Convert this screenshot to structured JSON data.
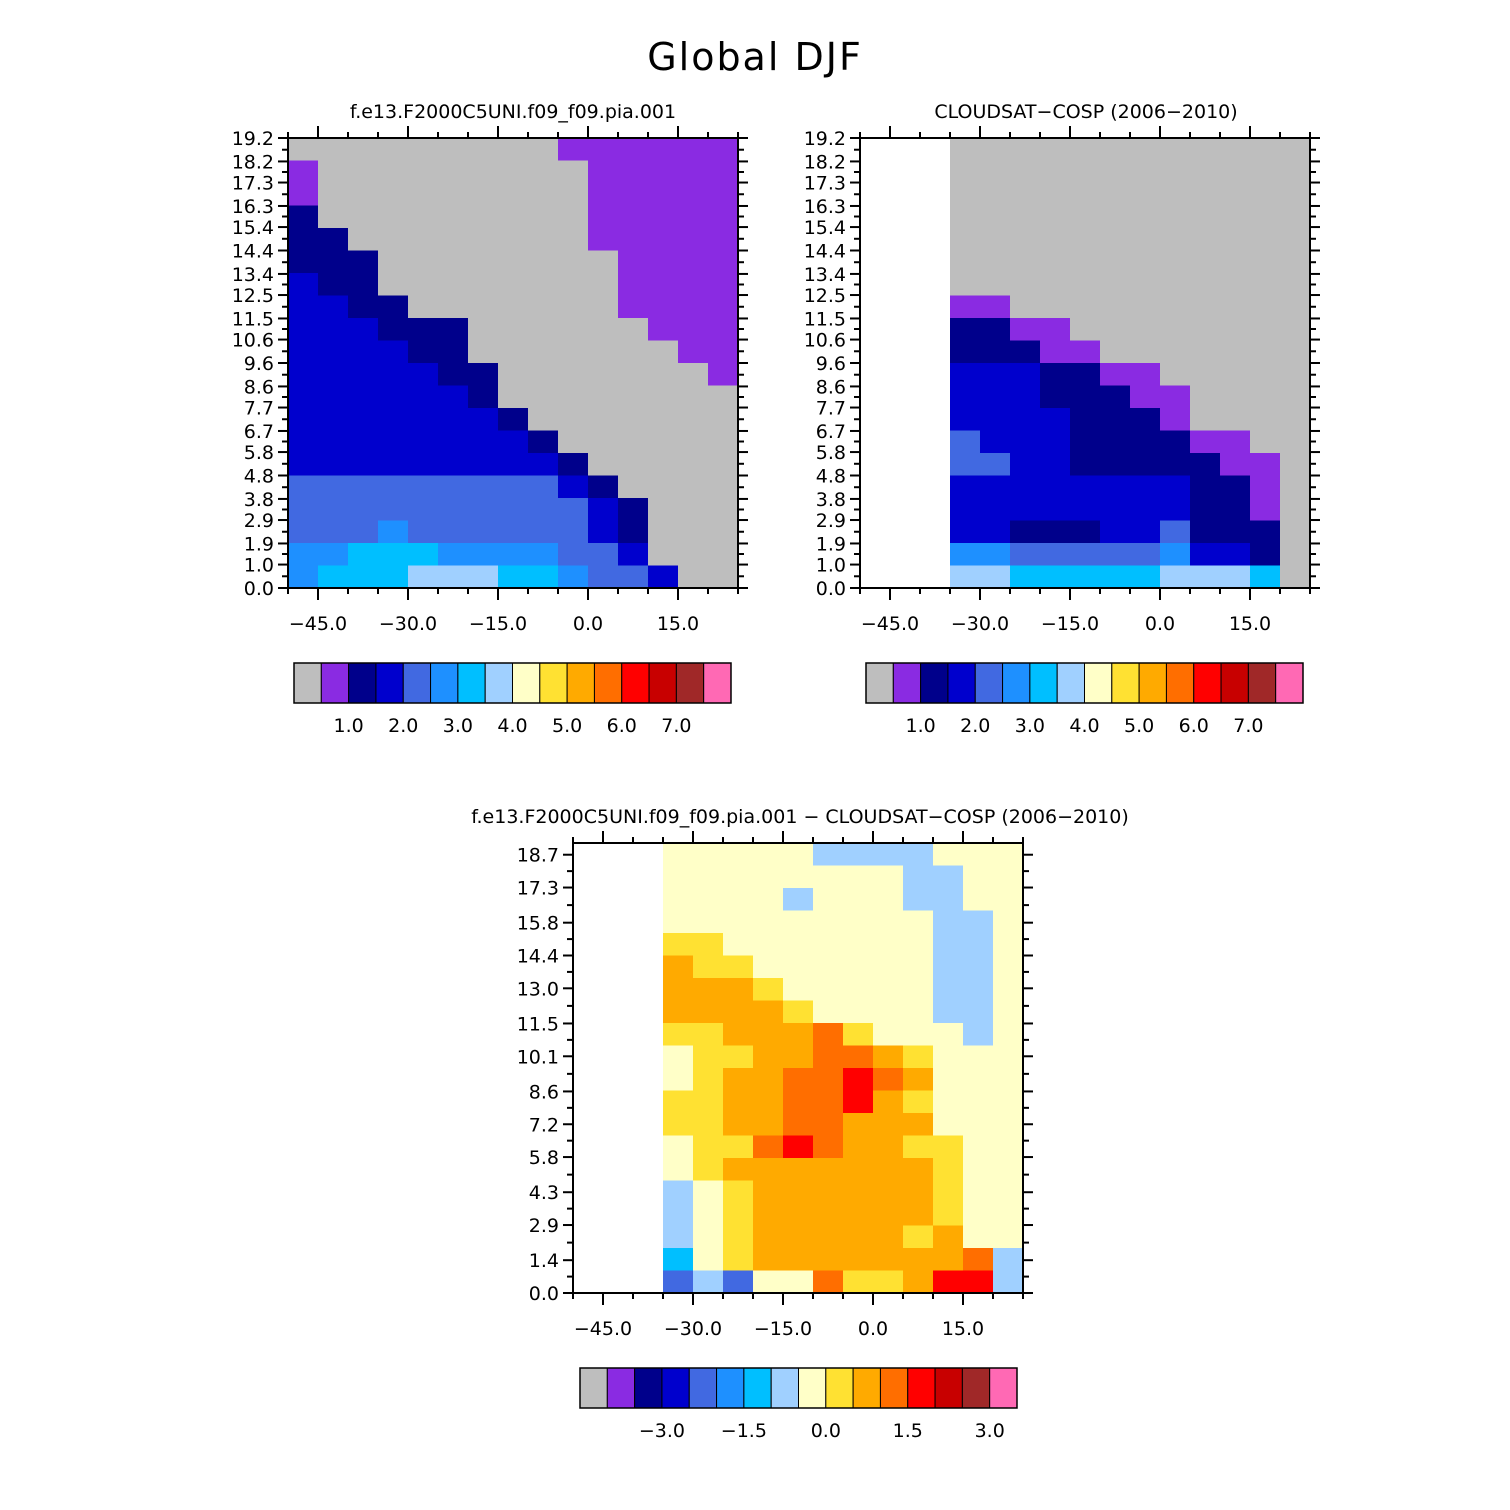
{
  "title": "Global DJF",
  "colors": {
    "missing": "#bebebe",
    "palette": [
      "#bebebe",
      "#8a2be2",
      "#00008b",
      "#0000cd",
      "#4169e1",
      "#1e90ff",
      "#00bfff",
      "#a0d0ff",
      "#ffffc8",
      "#ffe132",
      "#ffaa00",
      "#ff6e00",
      "#ff0000",
      "#c80000",
      "#a02828",
      "#ff69b4"
    ]
  },
  "chart_data": [
    {
      "type": "heatmap",
      "title": "f.e13.F2000C5UNI.f09_f09.pia.001",
      "xlabel": "",
      "ylabel": "",
      "x_ticks": [
        "−45.0",
        "−30.0",
        "−15.0",
        "0.0",
        "15.0"
      ],
      "x_tick_values": [
        -45,
        -30,
        -15,
        0,
        15
      ],
      "xlim": [
        -50,
        25
      ],
      "y_ticks": [
        "0.0",
        "1.0",
        "1.9",
        "2.9",
        "3.8",
        "4.8",
        "5.8",
        "6.7",
        "7.7",
        "8.6",
        "9.6",
        "10.6",
        "11.5",
        "12.5",
        "13.4",
        "14.4",
        "15.4",
        "16.3",
        "17.3",
        "18.2",
        "19.2"
      ],
      "ylim": [
        0,
        19.2
      ],
      "legend": {
        "type": "colorbar",
        "labels": [
          "1.0",
          "2.0",
          "3.0",
          "4.0",
          "5.0",
          "6.0",
          "7.0"
        ],
        "boundaries": [
          1,
          2,
          3,
          4,
          5,
          6,
          7
        ]
      },
      "cells_description": "Binned values (colour index 0=missing … 15). Values increase toward the lower-center and drop to ~1 near the upper-right edge.",
      "column_x_start": -50,
      "column_width": 5,
      "row_height": 0.96,
      "grid": [
        "aaaaaaaaabbbbbbbb",
        "baaaaaaaaabbbbbbb",
        "baaaaaaaaabbbbbbb",
        "caaaaaaaaabbbbbbb",
        "ccaaaaaaaabbbbbbb",
        "cccaaaaaaaabbbbbb",
        "dccaaaaaaaabbbbbb",
        "ddccaaaaaaabbbbbb",
        "dddcccaaaaaabbbbb",
        "ddddccaaaaaaabbbb",
        "dddddccaaaaaaabbb",
        "ddddddcaaaaaaaabb",
        "dddddddcaaaaaaaab",
        "ddddddddcaaaaaaab",
        "dddddddddcaaaaaab",
        "eeeeeeeeedcaaaaaa",
        "eeeeeeeeeedcaaaaa",
        "eeefeeeeeedcaaaaa",
        "ffgggffffeedaaaaa",
        "fggghhhggfeedaaaa"
      ]
    },
    {
      "type": "heatmap",
      "title": "CLOUDSAT−COSP (2006−2010)",
      "xlabel": "",
      "ylabel": "",
      "x_ticks": [
        "−45.0",
        "−30.0",
        "−15.0",
        "0.0",
        "15.0"
      ],
      "x_tick_values": [
        -45,
        -30,
        -15,
        0,
        15
      ],
      "xlim": [
        -50,
        25
      ],
      "y_ticks": [
        "0.0",
        "1.0",
        "1.9",
        "2.9",
        "3.8",
        "4.8",
        "5.8",
        "6.7",
        "7.7",
        "8.6",
        "9.6",
        "10.6",
        "11.5",
        "12.5",
        "13.4",
        "14.4",
        "15.4",
        "16.3",
        "17.3",
        "18.2",
        "19.2"
      ],
      "ylim": [
        0,
        19.2
      ],
      "legend": {
        "type": "colorbar",
        "labels": [
          "1.0",
          "2.0",
          "3.0",
          "4.0",
          "5.0",
          "6.0",
          "7.0"
        ],
        "boundaries": [
          1,
          2,
          3,
          4,
          5,
          6,
          7
        ]
      },
      "column_x_start": -35,
      "column_width": 5,
      "row_height": 0.96,
      "grid": [
        "aaaaaaaaaaaa",
        "aaaaaaaaaaaa",
        "aaaaaaaaaaaa",
        "aaaaaaaaaaaa",
        "aaaaaaaaaaaa",
        "aaaaaaaaaaaa",
        "aaaaaaaaaaaa",
        "bbaaaaaaaaaa",
        "ccbbaaaaaaaa",
        "cccbbaaaaaaa",
        "dddccbbaaaaa",
        "dddcccbbaaaa",
        "ddddcccbaaaa",
        "edddccccbbaa",
        "eeddcccccbba",
        "ddddddddccba",
        "ddddddddccba",
        "ddcccddeccca",
        "ffeeeeefddca",
        "hhggggghhhga"
      ]
    },
    {
      "type": "heatmap",
      "title": "f.e13.F2000C5UNI.f09_f09.pia.001 − CLOUDSAT−COSP (2006−2010)",
      "xlabel": "",
      "ylabel": "",
      "x_ticks": [
        "−45.0",
        "−30.0",
        "−15.0",
        "0.0",
        "15.0"
      ],
      "x_tick_values": [
        -45,
        -30,
        -15,
        0,
        15
      ],
      "xlim": [
        -50,
        25
      ],
      "y_ticks": [
        "0.0",
        "1.4",
        "2.9",
        "4.3",
        "5.8",
        "7.2",
        "8.6",
        "10.1",
        "11.5",
        "13.0",
        "14.4",
        "15.8",
        "17.3",
        "18.7"
      ],
      "ylim": [
        0,
        19.2
      ],
      "legend": {
        "type": "colorbar",
        "labels": [
          "−3.0",
          "−1.5",
          "0.0",
          "1.5",
          "3.0"
        ],
        "boundaries": [
          -3.0,
          -1.5,
          0.0,
          1.5,
          3.0
        ]
      },
      "column_x_start": -35,
      "column_width": 5,
      "row_height": 0.96,
      "grid": [
        "iiiiihhhhiii",
        "iiiiiiiihhii",
        "iiiihiiihhii",
        "iiiiiiiiihhi",
        "jjiiiiiiihhi",
        "kjjiiiiiihhi",
        "kkkjiiiiihhi",
        "kkkkjiiiihhi",
        "jjkkkljiiihi",
        "ijjkkllkjiii",
        "ijkkllmlkiii",
        "jjkkllmkjiii",
        "jjkkllkkkiii",
        "ijjlmlkkjjii",
        "ijkkkkkkkjii",
        "hijkkkkkkjii",
        "hijkkkkkkjii",
        "hijkkkkkjkii",
        "gijkkkkkkklh",
        "eheiiljjkmmh"
      ]
    }
  ]
}
